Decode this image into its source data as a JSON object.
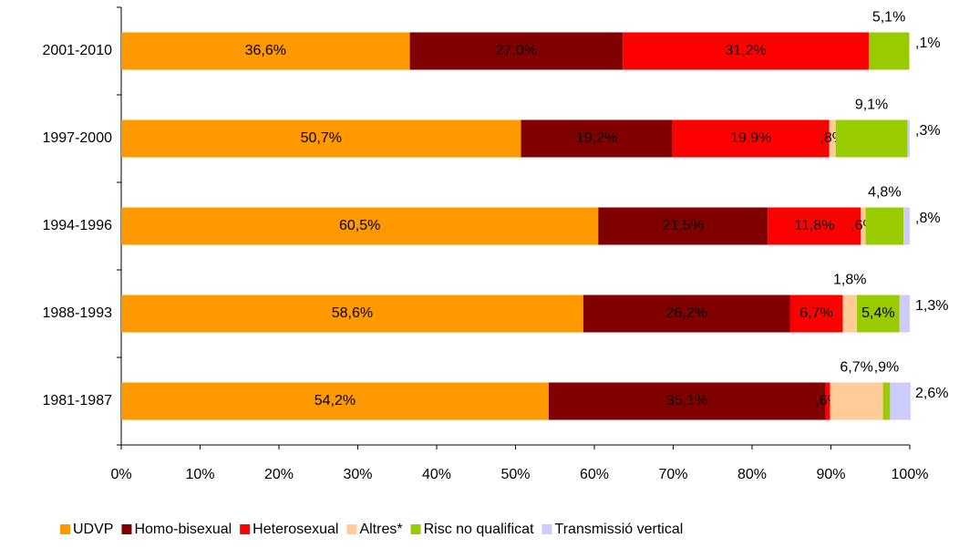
{
  "chart_data": {
    "type": "stacked-barh",
    "categories": [
      "2001-2010",
      "1997-2000",
      "1994-1996",
      "1988-1993",
      "1981-1987"
    ],
    "series": [
      {
        "name": "UDVP",
        "color": "#FF9900",
        "values": [
          36.6,
          50.7,
          60.5,
          58.6,
          54.2
        ],
        "value_labels": [
          "36,6%",
          "50,7%",
          "60,5%",
          "58,6%",
          "54,2%"
        ]
      },
      {
        "name": "Homo-bisexual",
        "color": "#800000",
        "values": [
          27.0,
          19.2,
          21.5,
          26.2,
          35.1
        ],
        "value_labels": [
          "27,0%",
          "19,2%",
          "21,5%",
          "26,2%",
          "35,1%"
        ]
      },
      {
        "name": "Heterosexual",
        "color": "#FF0000",
        "values": [
          31.2,
          19.9,
          11.8,
          6.7,
          0.6
        ],
        "value_labels": [
          "31,2%",
          "19,9%",
          "11,8%",
          "6,7%",
          ",6%"
        ]
      },
      {
        "name": "Altres*",
        "color": "#FFCC99",
        "values": [
          0,
          0.8,
          0.6,
          1.8,
          6.7
        ],
        "value_labels": [
          null,
          ",8%",
          ",6%",
          "1,8%",
          "6,7%"
        ]
      },
      {
        "name": "Risc no qualificat",
        "color": "#99CC00",
        "values": [
          5.1,
          9.1,
          4.8,
          5.4,
          0.9
        ],
        "value_labels": [
          "5,1%",
          "9,1%",
          "4,8%",
          "5,4%",
          ",9%"
        ]
      },
      {
        "name": "Transmissió vertical",
        "color": "#CCCCFF",
        "values": [
          0.1,
          0.3,
          0.8,
          1.3,
          2.6
        ],
        "value_labels": [
          ",1%",
          ",3%",
          ",8%",
          "1,3%",
          "2,6%"
        ]
      }
    ],
    "xlim": [
      0,
      100
    ],
    "xticks": [
      {
        "value": 0,
        "label": "0%"
      },
      {
        "value": 10,
        "label": "10%"
      },
      {
        "value": 20,
        "label": "20%"
      },
      {
        "value": 30,
        "label": "30%"
      },
      {
        "value": 40,
        "label": "40%"
      },
      {
        "value": 50,
        "label": "50%"
      },
      {
        "value": 60,
        "label": "60%"
      },
      {
        "value": 70,
        "label": "70%"
      },
      {
        "value": 80,
        "label": "80%"
      },
      {
        "value": 90,
        "label": "90%"
      },
      {
        "value": 100,
        "label": "100%"
      }
    ],
    "legend": "bottom"
  }
}
